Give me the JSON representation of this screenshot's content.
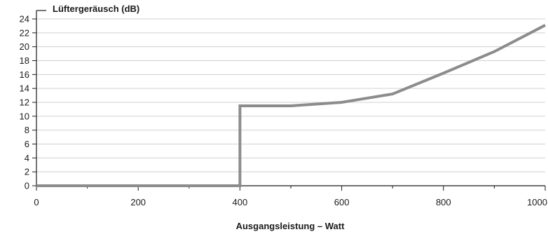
{
  "chart_data": {
    "type": "line",
    "title": "",
    "ylabel": "Lüftergeräusch (dB)",
    "xlabel": "Ausgangsleistung – Watt",
    "xlim": [
      0,
      1000
    ],
    "ylim": [
      0,
      24
    ],
    "x_ticks": [
      0,
      200,
      400,
      600,
      800,
      1000
    ],
    "x_minor_ticks": [
      100,
      300,
      500,
      700,
      900
    ],
    "y_ticks": [
      0,
      2,
      4,
      6,
      8,
      10,
      12,
      14,
      16,
      18,
      20,
      22,
      24
    ],
    "grid": true,
    "legend": "none",
    "series": [
      {
        "color": "#8c8c8c",
        "x": [
          0,
          400,
          400,
          500,
          600,
          700,
          800,
          900,
          1000
        ],
        "y": [
          0,
          0,
          11.5,
          11.5,
          12.0,
          13.2,
          16.2,
          19.3,
          23.1
        ]
      }
    ]
  }
}
